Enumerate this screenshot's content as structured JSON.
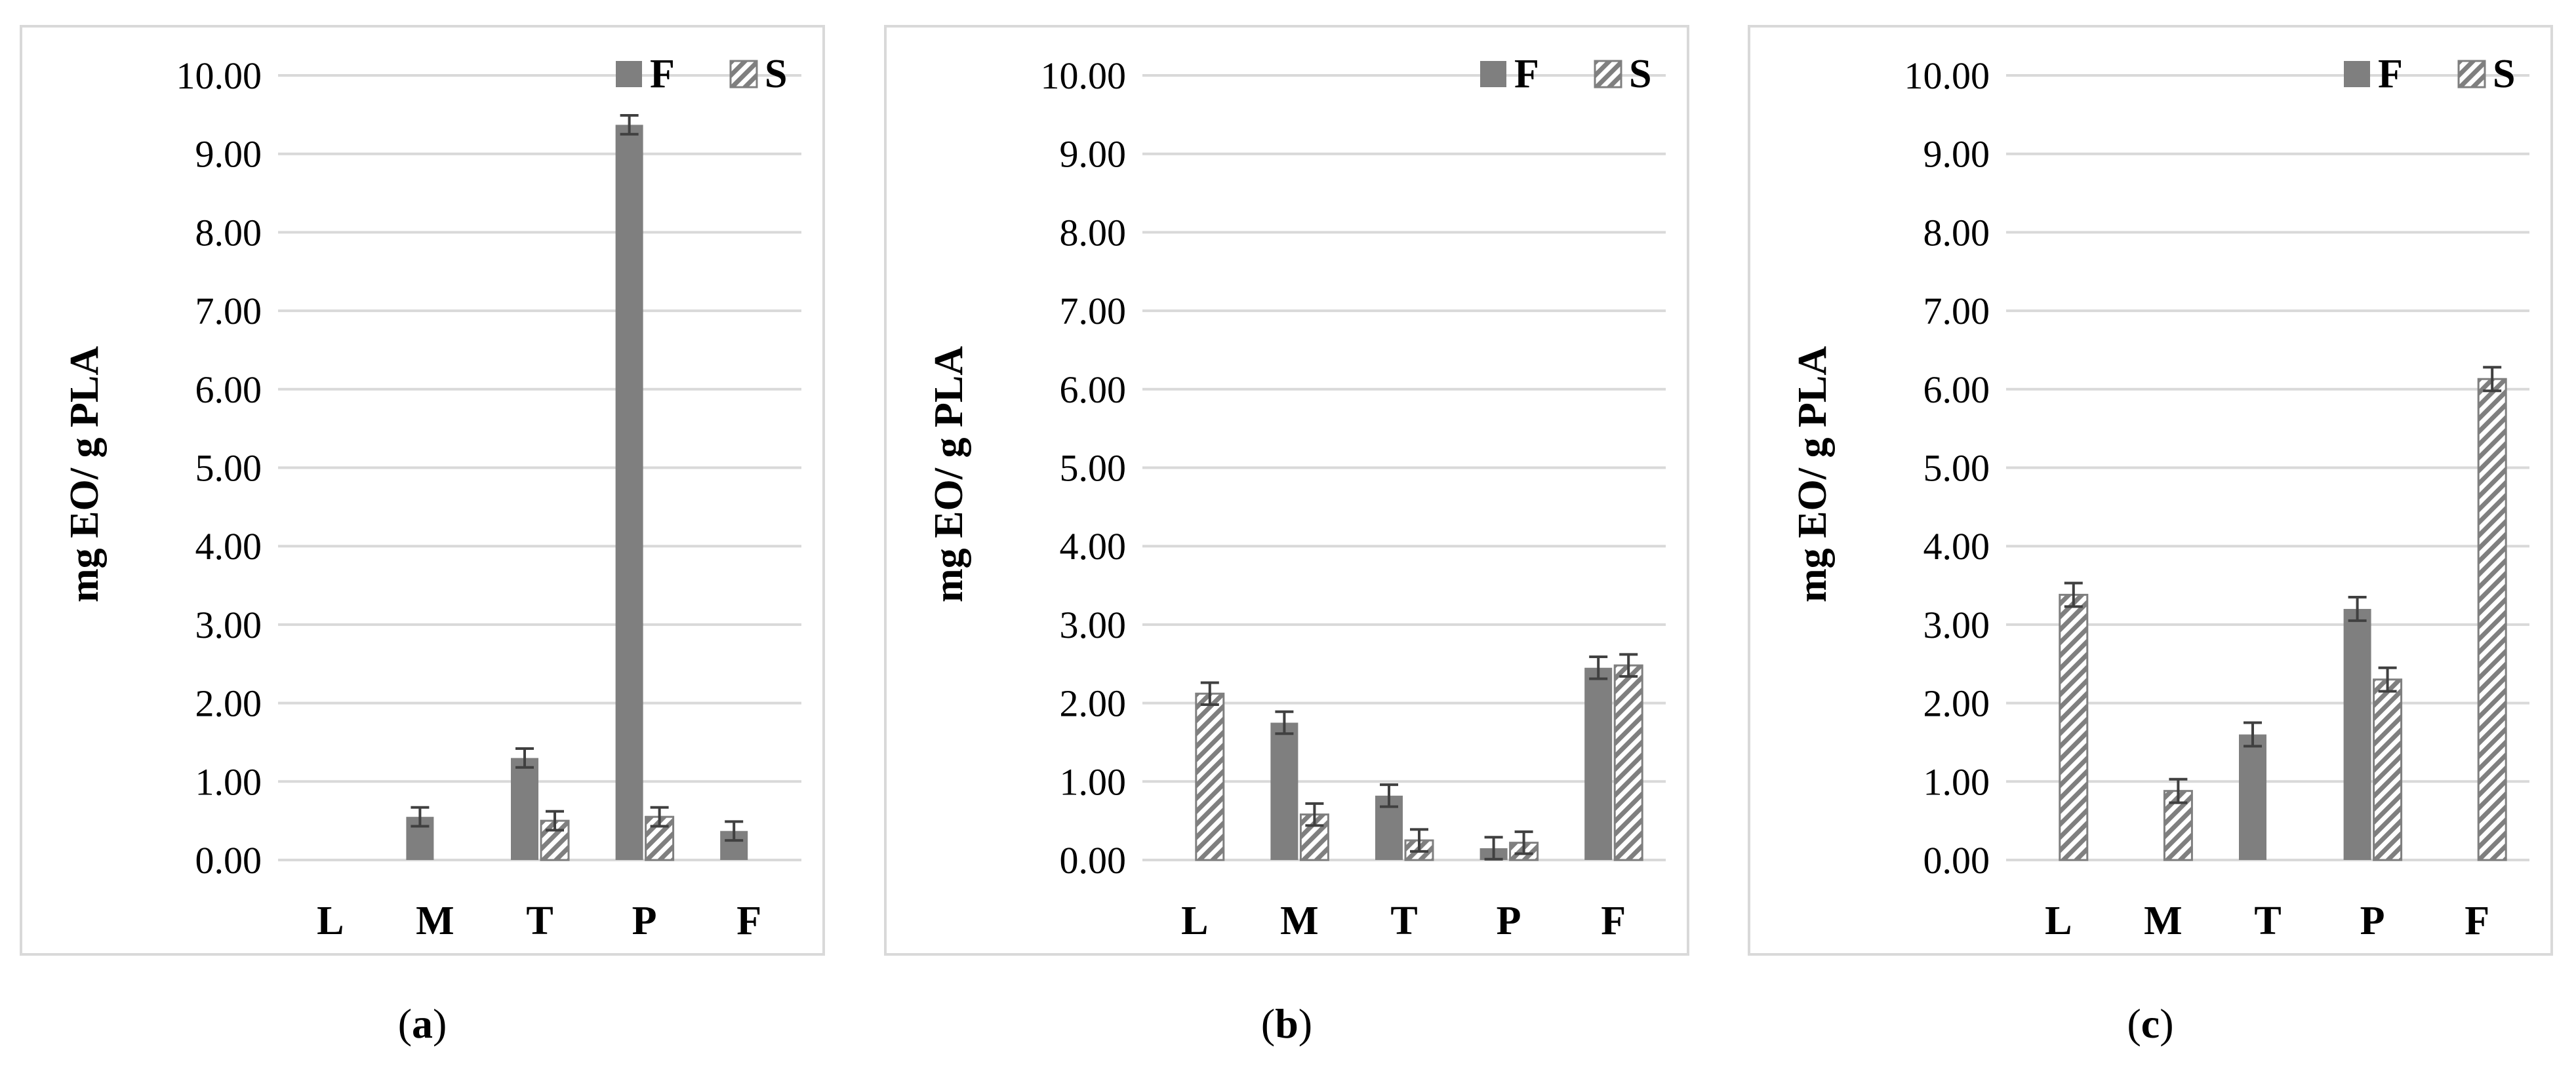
{
  "chart_data": [
    {
      "type": "bar",
      "ylabel": "mg EO/ g PLA",
      "ylim": [
        0,
        10
      ],
      "ytick_labels": [
        "0.00",
        "1.00",
        "2.00",
        "3.00",
        "4.00",
        "5.00",
        "6.00",
        "7.00",
        "8.00",
        "9.00",
        "10.00"
      ],
      "categories": [
        "L",
        "M",
        "T",
        "P",
        "F"
      ],
      "legend": "top-right",
      "grid": true,
      "series": [
        {
          "name": "F",
          "color": "#7f7f7f",
          "pattern": "solid",
          "values": [
            null,
            0.55,
            1.3,
            9.37,
            0.37
          ],
          "errors": [
            null,
            0.12,
            0.12,
            0.12,
            0.12
          ]
        },
        {
          "name": "S",
          "color": "#7f7f7f",
          "pattern": "hatched",
          "values": [
            null,
            null,
            0.5,
            0.55,
            null
          ],
          "errors": [
            null,
            null,
            0.12,
            0.12,
            null
          ]
        }
      ],
      "caption": "(a)"
    },
    {
      "type": "bar",
      "ylabel": "mg EO/ g PLA",
      "ylim": [
        0,
        10
      ],
      "ytick_labels": [
        "0.00",
        "1.00",
        "2.00",
        "3.00",
        "4.00",
        "5.00",
        "6.00",
        "7.00",
        "8.00",
        "9.00",
        "10.00"
      ],
      "categories": [
        "L",
        "M",
        "T",
        "P",
        "F"
      ],
      "legend": "top-right",
      "grid": true,
      "series": [
        {
          "name": "F",
          "color": "#7f7f7f",
          "pattern": "solid",
          "values": [
            null,
            1.75,
            0.82,
            0.15,
            2.45
          ],
          "errors": [
            null,
            0.14,
            0.14,
            0.14,
            0.14
          ]
        },
        {
          "name": "S",
          "color": "#7f7f7f",
          "pattern": "hatched",
          "values": [
            2.12,
            0.58,
            0.25,
            0.22,
            2.48
          ],
          "errors": [
            0.14,
            0.14,
            0.14,
            0.14,
            0.14
          ]
        }
      ],
      "caption": "(b)"
    },
    {
      "type": "bar",
      "ylabel": "mg EO/ g PLA",
      "ylim": [
        0,
        10
      ],
      "ytick_labels": [
        "0.00",
        "1.00",
        "2.00",
        "3.00",
        "4.00",
        "5.00",
        "6.00",
        "7.00",
        "8.00",
        "9.00",
        "10.00"
      ],
      "categories": [
        "L",
        "M",
        "T",
        "P",
        "F"
      ],
      "legend": "top-right",
      "grid": true,
      "series": [
        {
          "name": "F",
          "color": "#7f7f7f",
          "pattern": "solid",
          "values": [
            null,
            null,
            1.6,
            3.2,
            null
          ],
          "errors": [
            null,
            null,
            0.15,
            0.15,
            null
          ]
        },
        {
          "name": "S",
          "color": "#7f7f7f",
          "pattern": "hatched",
          "values": [
            3.38,
            0.88,
            null,
            2.3,
            6.13
          ],
          "errors": [
            0.15,
            0.15,
            null,
            0.15,
            0.15
          ]
        }
      ],
      "caption": "(c)"
    }
  ]
}
